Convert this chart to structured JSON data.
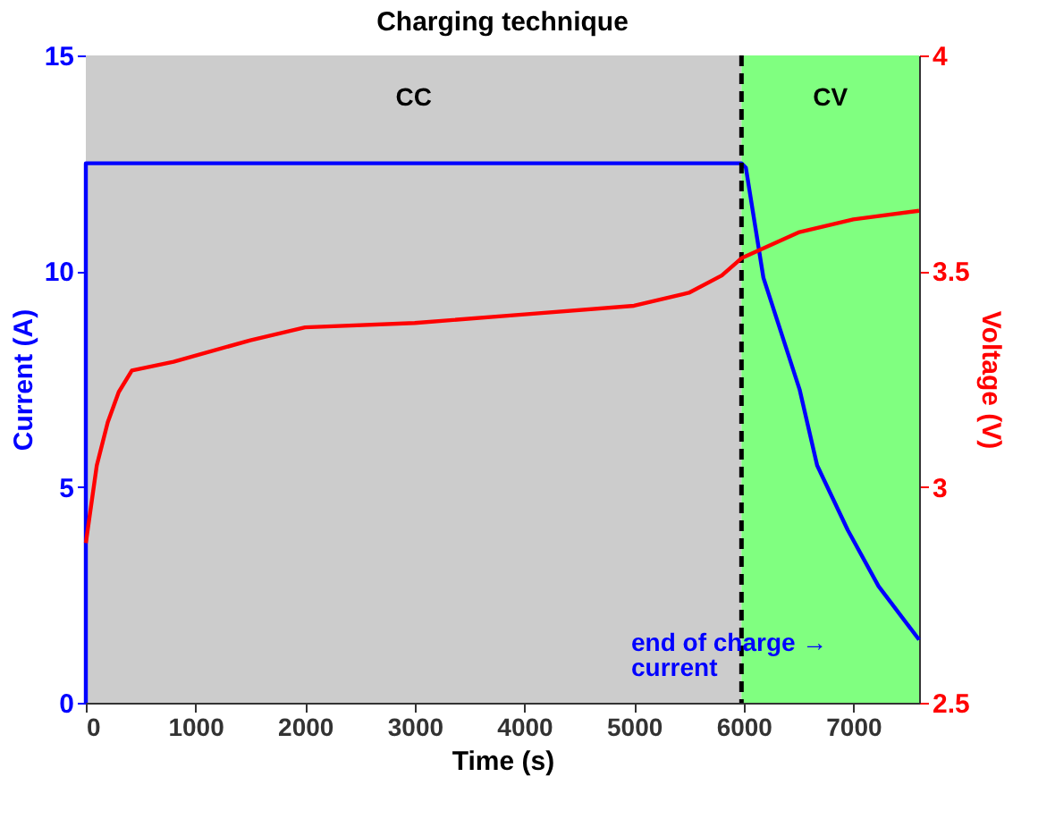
{
  "chart_data": {
    "type": "line",
    "title": "Charging technique",
    "xlabel": "Time (s)",
    "ylabel": "Current (A)",
    "y2label": "Voltage (V)",
    "xlim": [
      0,
      7600
    ],
    "xticks": [
      0,
      1000,
      2000,
      3000,
      4000,
      5000,
      6000,
      7000
    ],
    "ylim": [
      0,
      15
    ],
    "yticks": [
      0,
      5,
      10,
      15
    ],
    "y2lim": [
      2.5,
      4
    ],
    "y2ticks": [
      2.5,
      3,
      3.5,
      4
    ],
    "line_style": "solid",
    "marker": "none",
    "series": [
      {
        "color": "#0000ff",
        "axis": "y",
        "x": [
          0,
          0,
          5980,
          6020,
          6180,
          6510,
          6670,
          6950,
          7230,
          7600
        ],
        "values": [
          0,
          12.5,
          12.5,
          12.4,
          9.85,
          7.26,
          5.5,
          4.0,
          2.7,
          1.46
        ]
      },
      {
        "color": "#ff0000",
        "axis": "y2",
        "x": [
          0,
          100,
          200,
          300,
          420,
          800,
          1500,
          2000,
          3000,
          4000,
          5000,
          5500,
          5800,
          5980,
          6500,
          7000,
          7600
        ],
        "values": [
          2.87,
          3.05,
          3.15,
          3.22,
          3.27,
          3.29,
          3.34,
          3.37,
          3.38,
          3.4,
          3.42,
          3.45,
          3.49,
          3.53,
          3.59,
          3.62,
          3.64
        ]
      }
    ],
    "bands": [
      {
        "axis": "x",
        "from": 0,
        "to": 5980,
        "label": "CC",
        "color": "#cccccc"
      },
      {
        "axis": "x",
        "from": 5980,
        "to": 7600,
        "label": "CV",
        "color": "#80ff80"
      }
    ],
    "ref_lines": [
      {
        "axis": "x",
        "value": 5980,
        "color": "#000000",
        "line_style": "dashed"
      }
    ],
    "annotations": [
      "end of charge → current"
    ]
  }
}
